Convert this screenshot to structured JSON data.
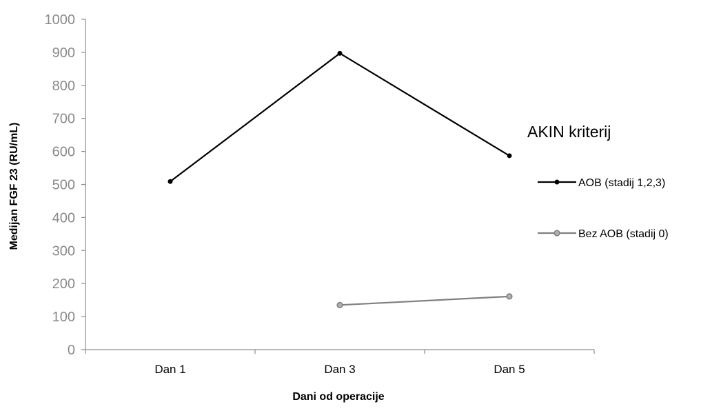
{
  "chart_data": {
    "type": "line",
    "categories": [
      "Dan 1",
      "Dan 3",
      "Dan 5"
    ],
    "series": [
      {
        "name": "AOB (stadij 1,2,3)",
        "values": [
          509,
          897,
          587
        ],
        "color": "#000000"
      },
      {
        "name": "Bez AOB (stadij 0)",
        "values": [
          null,
          135,
          161
        ],
        "color": "#808080"
      }
    ],
    "title": "",
    "xlabel": "Dani od operacije",
    "ylabel": "Medijan FGF 23 (RU/mL)",
    "ylim": [
      0,
      1000
    ],
    "yticks": [
      0,
      100,
      200,
      300,
      400,
      500,
      600,
      700,
      800,
      900,
      1000
    ],
    "grid": false,
    "legend_title": "AKIN kriterij",
    "legend_position": "right"
  }
}
